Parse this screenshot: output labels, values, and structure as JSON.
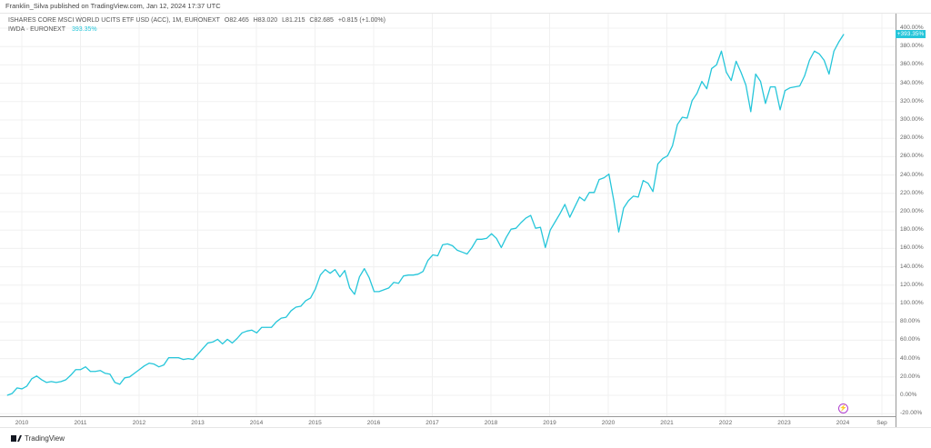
{
  "header": {
    "published": "Franklin_Silva published on TradingView.com, Jan 12, 2024 17:37 UTC"
  },
  "legend": {
    "title": "ISHARES CORE MSCI WORLD UCITS ETF USD (ACC), 1M, EURONEXT",
    "open": "O82.465",
    "high": "H83.020",
    "low": "L81.215",
    "close": "C82.685",
    "change": "+0.815 (+1.00%)",
    "symbol": "IWDA · EURONEXT",
    "percent": "393.35%"
  },
  "price_badge": "+393.35%",
  "footer": {
    "logo": "TradingView"
  },
  "colors": {
    "line": "#26c6da",
    "grid": "#f0f0f0",
    "event": "#b040d0"
  },
  "event_icon": "lightning-icon",
  "chart_data": {
    "type": "line",
    "title": "IWDA · EURONEXT percent change",
    "start": "2009-10",
    "interval": "1M",
    "ylim": [
      -20,
      400
    ],
    "yticks": [
      "400.00%",
      "380.00%",
      "360.00%",
      "340.00%",
      "320.00%",
      "300.00%",
      "280.00%",
      "260.00%",
      "240.00%",
      "220.00%",
      "200.00%",
      "180.00%",
      "160.00%",
      "140.00%",
      "120.00%",
      "100.00%",
      "80.00%",
      "60.00%",
      "40.00%",
      "20.00%",
      "0.00%",
      "-20.00%"
    ],
    "xticks": [
      "2010",
      "2011",
      "2012",
      "2013",
      "2014",
      "2015",
      "2016",
      "2017",
      "2018",
      "2019",
      "2020",
      "2021",
      "2022",
      "2023",
      "2024",
      "Sep"
    ],
    "values": [
      0,
      2,
      8,
      7,
      10,
      18,
      21,
      17,
      14,
      15,
      14,
      15,
      17,
      22,
      28,
      28,
      31,
      26,
      26,
      27,
      24,
      23,
      14,
      12,
      19,
      20,
      24,
      28,
      32,
      35,
      34,
      31,
      33,
      41,
      41,
      41,
      39,
      40,
      39,
      45,
      51,
      57,
      58,
      61,
      56,
      61,
      57,
      62,
      68,
      70,
      71,
      68,
      74,
      74,
      74,
      80,
      84,
      85,
      92,
      96,
      97,
      103,
      106,
      116,
      131,
      137,
      133,
      137,
      129,
      136,
      117,
      110,
      129,
      138,
      128,
      113,
      113,
      115,
      117,
      123,
      122,
      130,
      131,
      131,
      132,
      135,
      147,
      153,
      152,
      164,
      165,
      163,
      158,
      156,
      154,
      161,
      170,
      170,
      171,
      176,
      171,
      161,
      172,
      181,
      182,
      188,
      193,
      196,
      182,
      183,
      161,
      180,
      189,
      198,
      208,
      194,
      205,
      216,
      212,
      221,
      221,
      235,
      237,
      241,
      212,
      178,
      204,
      212,
      217,
      216,
      234,
      231,
      222,
      252,
      258,
      261,
      272,
      295,
      303,
      302,
      321,
      329,
      342,
      334,
      356,
      360,
      375,
      352,
      343,
      364,
      352,
      338,
      309,
      350,
      342,
      318,
      336,
      336,
      311,
      332,
      335,
      336,
      337,
      348,
      365,
      375,
      372,
      365,
      350,
      375,
      385,
      393.35
    ]
  }
}
